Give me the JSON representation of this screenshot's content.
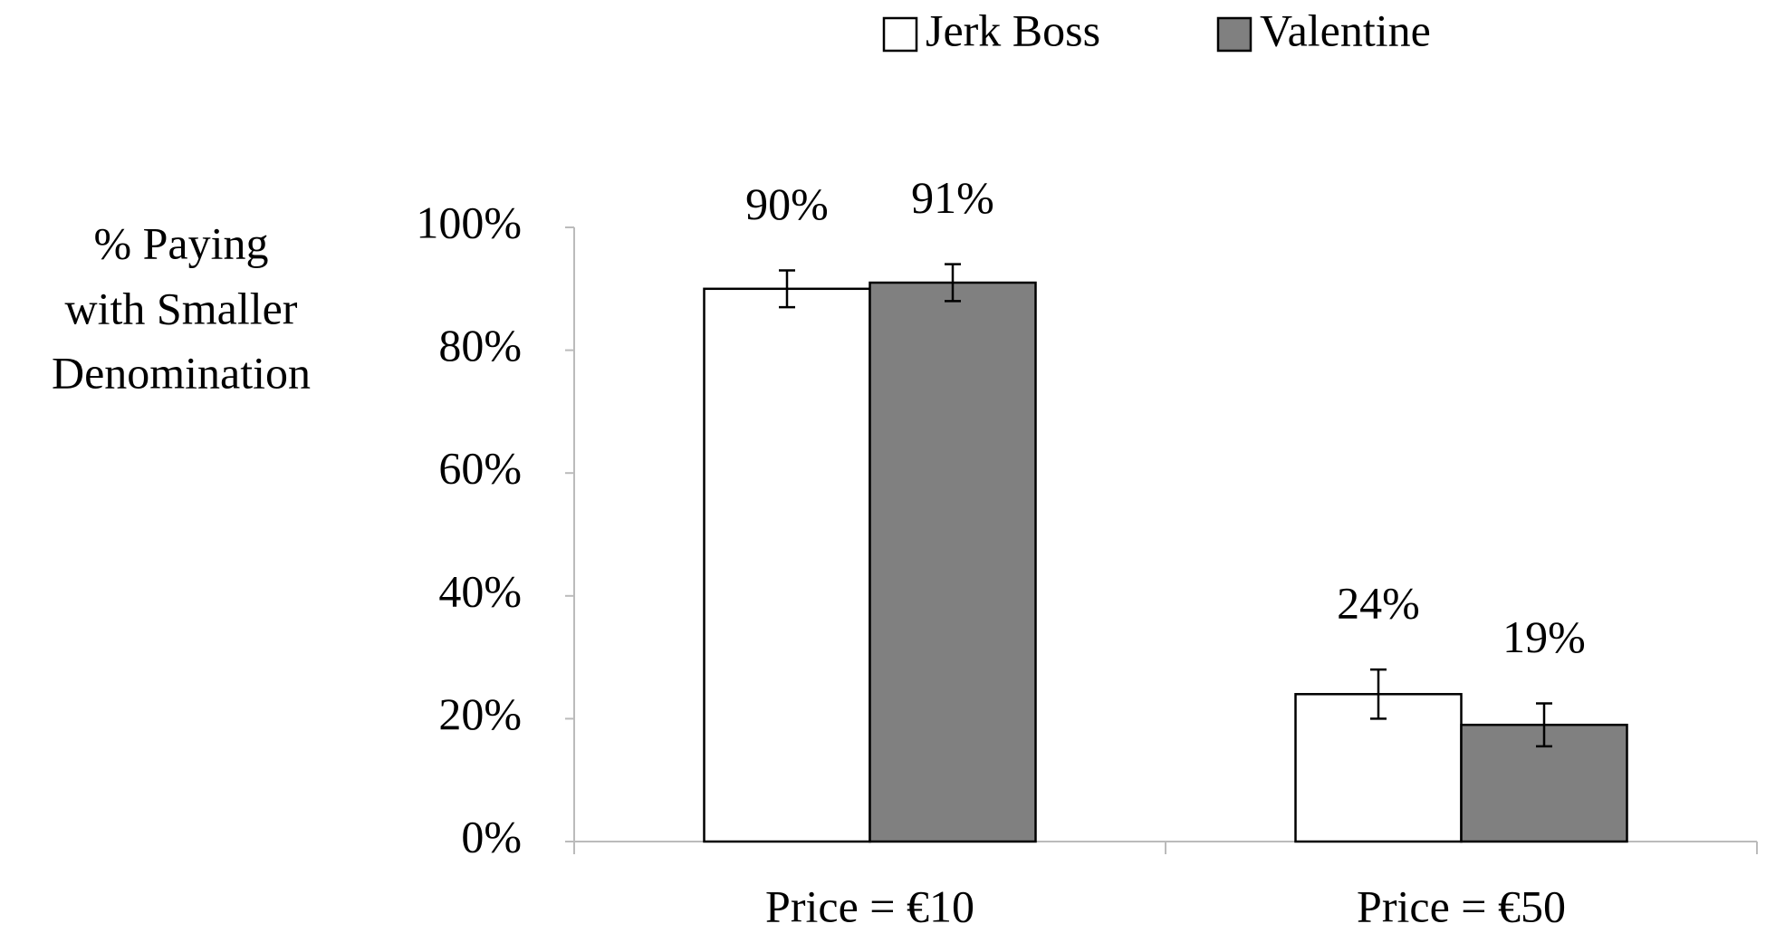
{
  "chart_data": {
    "type": "bar",
    "ylabel": [
      "% Paying",
      "with Smaller",
      "Denomination"
    ],
    "categories": [
      "Price = €10",
      "Price = €50"
    ],
    "series": [
      {
        "name": "Jerk Boss",
        "color": "#ffffff",
        "values": [
          90,
          24
        ],
        "value_labels": [
          "90%",
          "24%"
        ],
        "errors": [
          3,
          4
        ]
      },
      {
        "name": "Valentine",
        "color": "#808080",
        "values": [
          91,
          19
        ],
        "value_labels": [
          "91%",
          "19%"
        ],
        "errors": [
          3,
          3.5
        ]
      }
    ],
    "ylim": [
      0,
      100
    ],
    "yticks": [
      {
        "value": 0,
        "label": "0%"
      },
      {
        "value": 20,
        "label": "20%"
      },
      {
        "value": 40,
        "label": "40%"
      },
      {
        "value": 60,
        "label": "60%"
      },
      {
        "value": 80,
        "label": "80%"
      },
      {
        "value": 100,
        "label": "100%"
      }
    ],
    "legend": "top"
  }
}
